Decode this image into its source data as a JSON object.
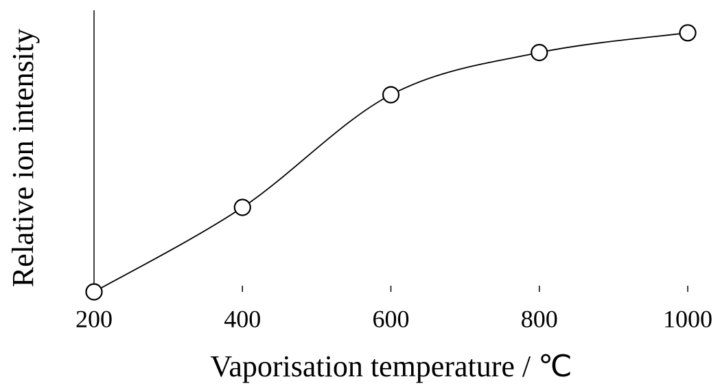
{
  "chart_data": {
    "type": "line",
    "x_label": "Vaporisation temperature / ℃",
    "y_label": "Relative ion intensity",
    "x": [
      200,
      400,
      600,
      800,
      1000
    ],
    "values": [
      0,
      0.3,
      0.7,
      0.85,
      0.92
    ],
    "color": "#000000",
    "xlim": [
      200,
      1000
    ],
    "xticks": [
      200,
      400,
      600,
      800,
      1000
    ],
    "ylim": [
      0,
      1
    ]
  }
}
